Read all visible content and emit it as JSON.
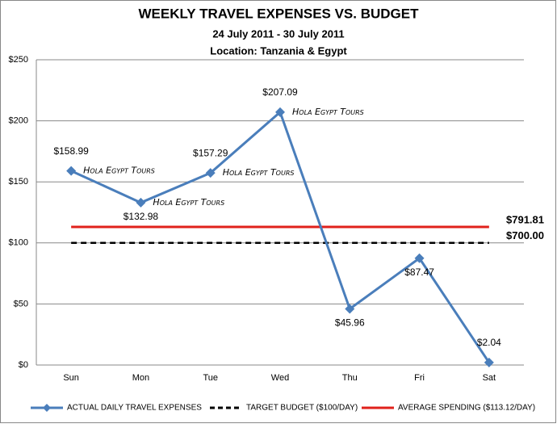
{
  "chart_data": {
    "type": "line",
    "title": "WEEKLY TRAVEL EXPENSES VS. BUDGET",
    "subtitle": "24 July 2011 - 30 July 2011",
    "subtitle2": "Location: Tanzania & Egypt",
    "categories": [
      "Sun",
      "Mon",
      "Tue",
      "Wed",
      "Thu",
      "Fri",
      "Sat"
    ],
    "ylim": [
      0,
      250
    ],
    "yticks": [
      {
        "value": 0,
        "label": "$0"
      },
      {
        "value": 50,
        "label": "$50"
      },
      {
        "value": 100,
        "label": "$100"
      },
      {
        "value": 150,
        "label": "$150"
      },
      {
        "value": 200,
        "label": "$200"
      },
      {
        "value": 250,
        "label": "$250"
      }
    ],
    "grid": true,
    "legend": "bottom",
    "series": [
      {
        "name": "ACTUAL DAILY TRAVEL EXPENSES",
        "color": "#4a7ebb",
        "style": "solid",
        "marker": "diamond",
        "values": [
          158.99,
          132.98,
          157.29,
          207.09,
          45.96,
          87.47,
          2.04
        ],
        "value_labels": [
          "$158.99",
          "$132.98",
          "$157.29",
          "$207.09",
          "$45.96",
          "$87.47",
          "$2.04"
        ]
      },
      {
        "name": "TARGET BUDGET ($100/DAY)",
        "color": "#000000",
        "style": "dashed",
        "values": [
          100,
          100,
          100,
          100,
          100,
          100,
          100
        ],
        "end_label": "$700.00"
      },
      {
        "name": "AVERAGE SPENDING ($113.12/DAY)",
        "color": "#e0211b",
        "style": "solid",
        "values": [
          113.12,
          113.12,
          113.12,
          113.12,
          113.12,
          113.12,
          113.12
        ],
        "end_label": "$791.81"
      }
    ],
    "annotations": [
      "Hola Egypt Tours",
      "Hola Egypt Tours",
      "Hola Egypt Tours",
      "Hola Egypt Tours"
    ]
  }
}
